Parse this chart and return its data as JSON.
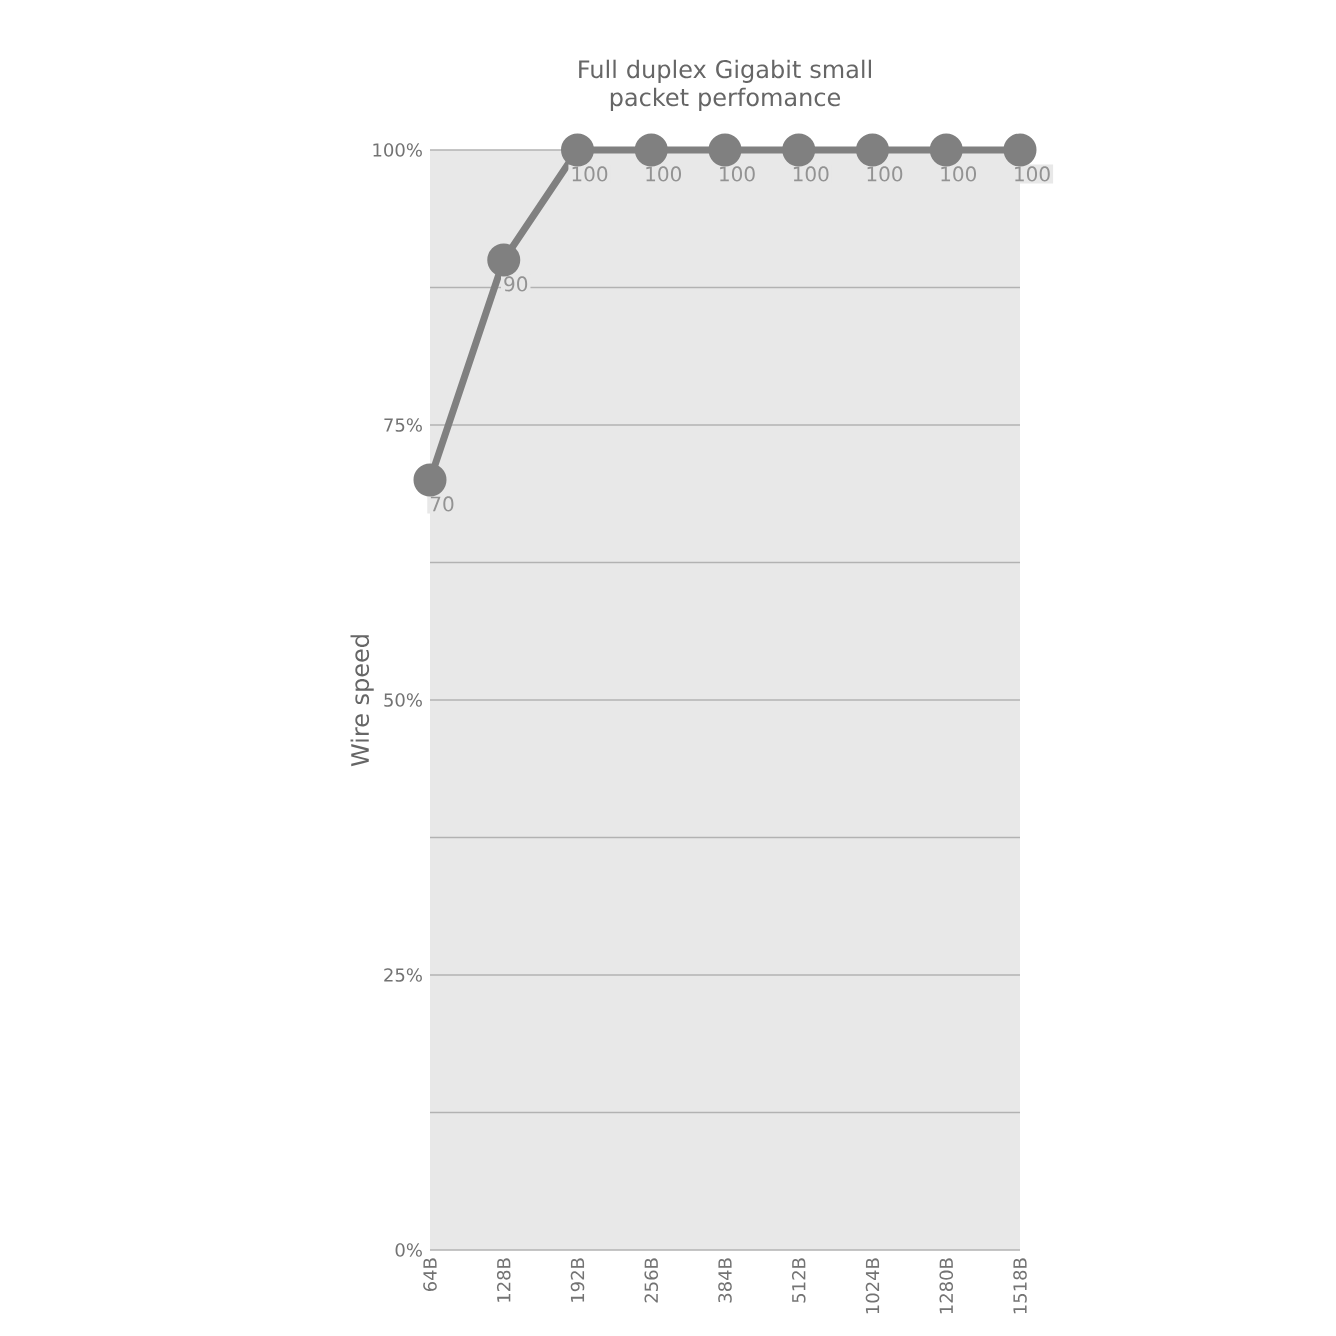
{
  "chart_data": {
    "type": "line",
    "title": "Full duplex Gigabit small packet perfomance",
    "ylabel": "Wire speed",
    "categories": [
      "64B",
      "128B",
      "192B",
      "256B",
      "384B",
      "512B",
      "1024B",
      "1280B",
      "1518B"
    ],
    "values": [
      70,
      90,
      100,
      100,
      100,
      100,
      100,
      100,
      100
    ],
    "color": "#808080",
    "marker": "circle",
    "line_style": "solid",
    "data_labels": true,
    "grid": "y",
    "ylim": [
      0,
      100
    ],
    "yticks": [
      {
        "value": 0,
        "label": "0%"
      },
      {
        "value": 12.5,
        "label": null
      },
      {
        "value": 25,
        "label": "25%"
      },
      {
        "value": 37.5,
        "label": null
      },
      {
        "value": 50,
        "label": "50%"
      },
      {
        "value": 62.5,
        "label": null
      },
      {
        "value": 75,
        "label": "75%"
      },
      {
        "value": 87.5,
        "label": null
      },
      {
        "value": 100,
        "label": "100%"
      }
    ]
  }
}
